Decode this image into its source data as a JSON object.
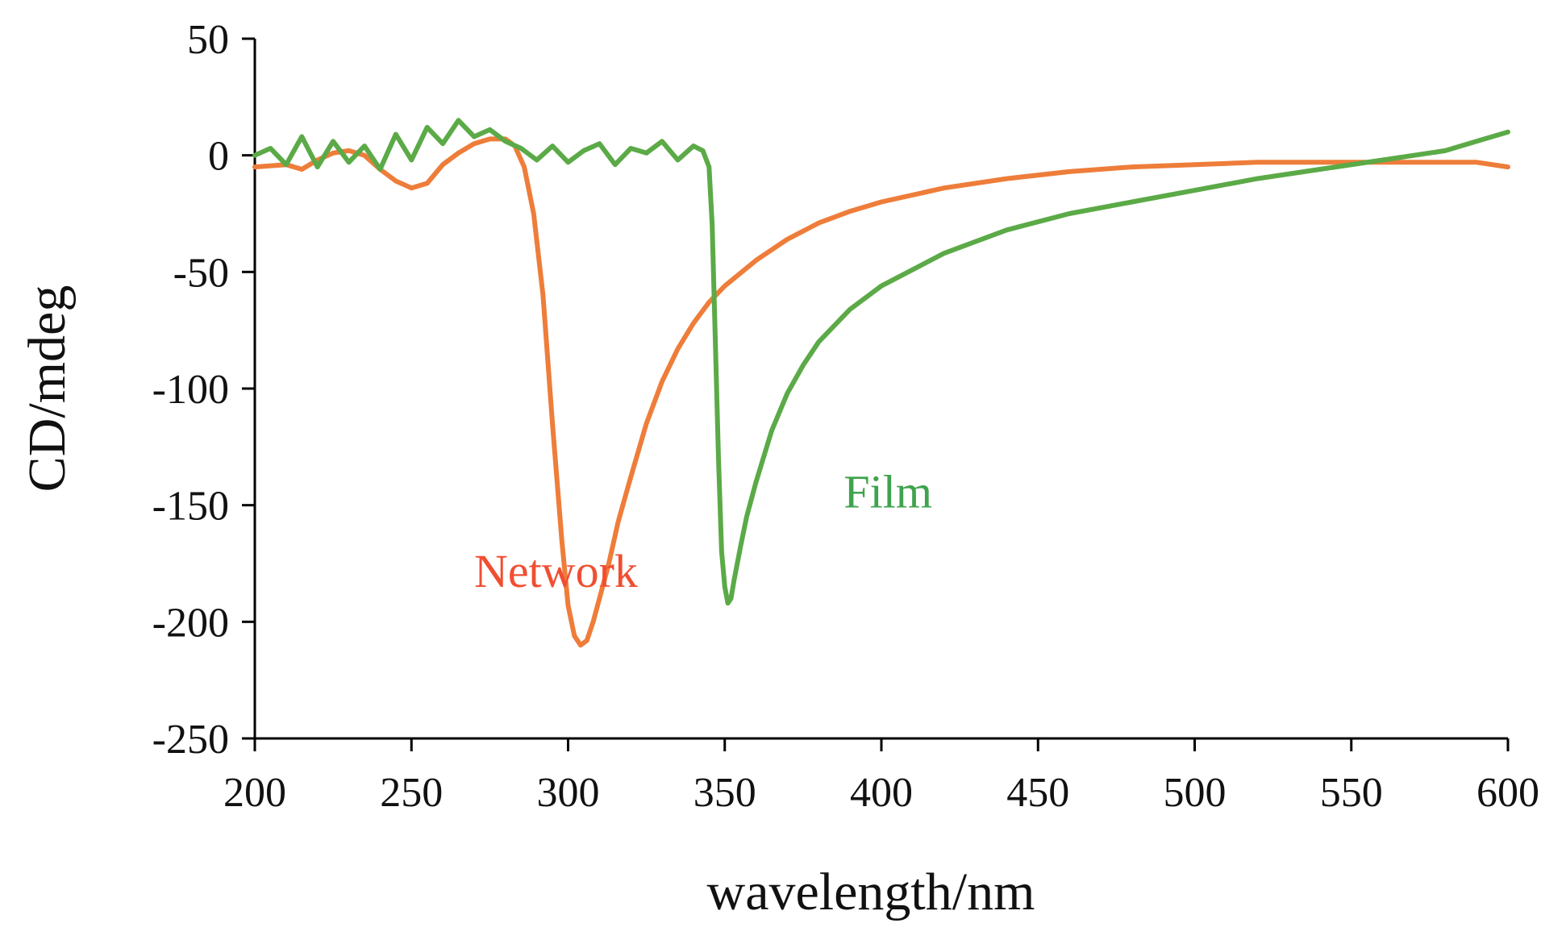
{
  "chart_data": {
    "type": "line",
    "xlabel": "wavelength/nm",
    "ylabel": "CD/mdeg",
    "xlim": [
      200,
      600
    ],
    "ylim": [
      -250,
      50
    ],
    "xticks": [
      "200",
      "250",
      "300",
      "350",
      "400",
      "450",
      "500",
      "550",
      "600"
    ],
    "yticks": [
      "50",
      "0",
      "-50",
      "-100",
      "-150",
      "-200",
      "-250"
    ],
    "grid": false,
    "legend": "none",
    "series": [
      {
        "name": "Network",
        "color": "#EE7D3A",
        "label_color": "#F04E32",
        "label_anchor": {
          "x": 270,
          "y": -185
        },
        "x": [
          200,
          210,
          215,
          220,
          225,
          230,
          235,
          240,
          245,
          250,
          255,
          260,
          265,
          270,
          275,
          280,
          283,
          286,
          289,
          292,
          295,
          298,
          300,
          302,
          304,
          306,
          308,
          310,
          313,
          316,
          320,
          325,
          330,
          335,
          340,
          345,
          350,
          360,
          370,
          380,
          390,
          400,
          420,
          440,
          460,
          480,
          500,
          520,
          540,
          560,
          580,
          590,
          600
        ],
        "y": [
          -5,
          -4,
          -6,
          -2,
          1,
          2,
          0,
          -6,
          -11,
          -14,
          -12,
          -4,
          1,
          5,
          7,
          7,
          4,
          -5,
          -25,
          -60,
          -115,
          -165,
          -193,
          -206,
          -210,
          -208,
          -200,
          -190,
          -175,
          -157,
          -138,
          -115,
          -97,
          -83,
          -72,
          -63,
          -56,
          -45,
          -36,
          -29,
          -24,
          -20,
          -14,
          -10,
          -7,
          -5,
          -4,
          -3,
          -3,
          -3,
          -3,
          -3,
          -5
        ]
      },
      {
        "name": "Film",
        "color": "#5BAA47",
        "label_color": "#3FA34D",
        "label_anchor": {
          "x": 388,
          "y": -151
        },
        "x": [
          200,
          205,
          210,
          215,
          220,
          225,
          230,
          235,
          240,
          245,
          250,
          255,
          260,
          265,
          270,
          275,
          280,
          285,
          290,
          295,
          300,
          305,
          310,
          315,
          320,
          325,
          330,
          335,
          340,
          343,
          345,
          346,
          347,
          348,
          349,
          350,
          351,
          352,
          353,
          355,
          357,
          360,
          365,
          370,
          375,
          380,
          390,
          400,
          420,
          440,
          460,
          480,
          500,
          520,
          540,
          560,
          580,
          590,
          600
        ],
        "y": [
          0,
          3,
          -4,
          8,
          -5,
          6,
          -3,
          4,
          -6,
          9,
          -2,
          12,
          5,
          15,
          8,
          11,
          6,
          3,
          -2,
          4,
          -3,
          2,
          5,
          -4,
          3,
          1,
          6,
          -2,
          4,
          2,
          -5,
          -30,
          -80,
          -130,
          -170,
          -185,
          -192,
          -190,
          -182,
          -168,
          -155,
          -140,
          -118,
          -102,
          -90,
          -80,
          -66,
          -56,
          -42,
          -32,
          -25,
          -20,
          -15,
          -10,
          -6,
          -2,
          2,
          6,
          10
        ]
      }
    ]
  }
}
